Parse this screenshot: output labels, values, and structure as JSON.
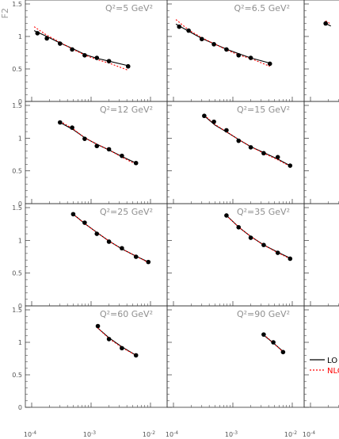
{
  "y_axis_label": "F2",
  "legend": [
    {
      "label": "LO",
      "color": "#000000",
      "dash": false
    },
    {
      "label": "NLO",
      "color": "#ff0000",
      "dash": true
    }
  ],
  "chart_data": {
    "type": "scatter",
    "xscale": "log",
    "xlim": [
      0.0001,
      0.01
    ],
    "ylim": [
      0,
      1.5
    ],
    "x_tick_labels": [
      "10^-4",
      "10^-3",
      "10^-2"
    ],
    "y_tick_labels": [
      "0",
      "0.5",
      "1",
      "1.5"
    ],
    "grid": false,
    "panels": [
      {
        "title": "Q2=5 GeV2",
        "title_text": "Q²=5 GeV²",
        "points": [
          [
            0.000125,
            1.05
          ],
          [
            0.00018,
            0.97
          ],
          [
            0.0003,
            0.89
          ],
          [
            0.00048,
            0.8
          ],
          [
            0.00078,
            0.71
          ],
          [
            0.00125,
            0.67
          ],
          [
            0.002,
            0.62
          ],
          [
            0.0042,
            0.54
          ]
        ],
        "lo": [
          [
            0.00011,
            1.09
          ],
          [
            0.00018,
            1.0
          ],
          [
            0.0003,
            0.9
          ],
          [
            0.0005,
            0.81
          ],
          [
            0.0008,
            0.72
          ],
          [
            0.0013,
            0.66
          ],
          [
            0.002,
            0.62
          ],
          [
            0.0042,
            0.55
          ]
        ],
        "nlo": [
          [
            0.00011,
            1.15
          ],
          [
            0.00018,
            1.02
          ],
          [
            0.0003,
            0.91
          ],
          [
            0.0005,
            0.8
          ],
          [
            0.0008,
            0.71
          ],
          [
            0.0013,
            0.64
          ],
          [
            0.002,
            0.59
          ],
          [
            0.0042,
            0.48
          ]
        ]
      },
      {
        "title": "Q2=6.5 GeV2",
        "title_text": "Q²=6.5 GeV²",
        "points": [
          [
            0.000125,
            1.15
          ],
          [
            0.00018,
            1.09
          ],
          [
            0.0003,
            0.96
          ],
          [
            0.00048,
            0.88
          ],
          [
            0.00078,
            0.8
          ],
          [
            0.00125,
            0.71
          ],
          [
            0.002,
            0.67
          ],
          [
            0.0042,
            0.58
          ]
        ],
        "lo": [
          [
            0.00011,
            1.19
          ],
          [
            0.00018,
            1.08
          ],
          [
            0.0003,
            0.97
          ],
          [
            0.0005,
            0.88
          ],
          [
            0.0008,
            0.8
          ],
          [
            0.0013,
            0.73
          ],
          [
            0.002,
            0.67
          ],
          [
            0.0042,
            0.59
          ]
        ],
        "nlo": [
          [
            0.00011,
            1.26
          ],
          [
            0.00018,
            1.1
          ],
          [
            0.0003,
            0.98
          ],
          [
            0.0005,
            0.88
          ],
          [
            0.0008,
            0.79
          ],
          [
            0.0013,
            0.71
          ],
          [
            0.002,
            0.66
          ],
          [
            0.0042,
            0.54
          ]
        ]
      },
      {
        "title": "",
        "title_text": "",
        "points": [
          [
            0.00018,
            1.2
          ]
        ],
        "lo": [
          [
            0.00018,
            1.2
          ],
          [
            0.00022,
            1.16
          ]
        ],
        "nlo": [
          [
            0.00018,
            1.24
          ],
          [
            0.00022,
            1.19
          ]
        ]
      },
      {
        "title": "Q2=12 GeV2",
        "title_text": "Q²=12 GeV²",
        "points": [
          [
            0.0003,
            1.24
          ],
          [
            0.00048,
            1.16
          ],
          [
            0.00078,
            0.99
          ],
          [
            0.00125,
            0.88
          ],
          [
            0.002,
            0.83
          ],
          [
            0.0033,
            0.73
          ],
          [
            0.0057,
            0.62
          ]
        ],
        "lo": [
          [
            0.0003,
            1.24
          ],
          [
            0.0005,
            1.13
          ],
          [
            0.0008,
            1.0
          ],
          [
            0.0013,
            0.9
          ],
          [
            0.002,
            0.82
          ],
          [
            0.0033,
            0.72
          ],
          [
            0.0057,
            0.62
          ]
        ],
        "nlo": [
          [
            0.0003,
            1.26
          ],
          [
            0.0005,
            1.14
          ],
          [
            0.0008,
            1.0
          ],
          [
            0.0013,
            0.9
          ],
          [
            0.002,
            0.82
          ],
          [
            0.0033,
            0.71
          ],
          [
            0.0057,
            0.6
          ]
        ]
      },
      {
        "title": "Q2=15 GeV2",
        "title_text": "Q²=15 GeV²",
        "points": [
          [
            0.00033,
            1.34
          ],
          [
            0.00048,
            1.25
          ],
          [
            0.00078,
            1.12
          ],
          [
            0.00125,
            0.96
          ],
          [
            0.002,
            0.86
          ],
          [
            0.0033,
            0.77
          ],
          [
            0.0057,
            0.71
          ],
          [
            0.0092,
            0.58
          ]
        ],
        "lo": [
          [
            0.00033,
            1.34
          ],
          [
            0.0005,
            1.2
          ],
          [
            0.0008,
            1.09
          ],
          [
            0.0013,
            0.97
          ],
          [
            0.002,
            0.87
          ],
          [
            0.0033,
            0.78
          ],
          [
            0.0057,
            0.68
          ],
          [
            0.0092,
            0.58
          ]
        ],
        "nlo": [
          [
            0.00033,
            1.35
          ],
          [
            0.0005,
            1.21
          ],
          [
            0.0008,
            1.09
          ],
          [
            0.0013,
            0.97
          ],
          [
            0.002,
            0.87
          ],
          [
            0.0033,
            0.77
          ],
          [
            0.0057,
            0.67
          ],
          [
            0.0092,
            0.57
          ]
        ]
      },
      {
        "title": "",
        "title_text": "",
        "points": [],
        "lo": [],
        "nlo": []
      },
      {
        "title": "Q2=25 GeV2",
        "title_text": "Q²=25 GeV²",
        "points": [
          [
            0.0005,
            1.4
          ],
          [
            0.00078,
            1.27
          ],
          [
            0.00125,
            1.1
          ],
          [
            0.002,
            0.98
          ],
          [
            0.0033,
            0.88
          ],
          [
            0.0057,
            0.75
          ],
          [
            0.0092,
            0.67
          ]
        ],
        "lo": [
          [
            0.0005,
            1.4
          ],
          [
            0.0008,
            1.25
          ],
          [
            0.0013,
            1.11
          ],
          [
            0.002,
            0.99
          ],
          [
            0.0033,
            0.87
          ],
          [
            0.0057,
            0.76
          ],
          [
            0.0092,
            0.67
          ]
        ],
        "nlo": [
          [
            0.0005,
            1.4
          ],
          [
            0.0008,
            1.25
          ],
          [
            0.0013,
            1.11
          ],
          [
            0.002,
            0.99
          ],
          [
            0.0033,
            0.87
          ],
          [
            0.0057,
            0.76
          ],
          [
            0.0092,
            0.66
          ]
        ]
      },
      {
        "title": "Q2=35 GeV2",
        "title_text": "Q²=35 GeV²",
        "points": [
          [
            0.00078,
            1.38
          ],
          [
            0.00125,
            1.2
          ],
          [
            0.002,
            1.04
          ],
          [
            0.0033,
            0.93
          ],
          [
            0.0057,
            0.81
          ],
          [
            0.0092,
            0.72
          ]
        ],
        "lo": [
          [
            0.00078,
            1.38
          ],
          [
            0.0013,
            1.19
          ],
          [
            0.002,
            1.06
          ],
          [
            0.0033,
            0.93
          ],
          [
            0.0057,
            0.82
          ],
          [
            0.0092,
            0.73
          ]
        ],
        "nlo": [
          [
            0.00078,
            1.38
          ],
          [
            0.0013,
            1.19
          ],
          [
            0.002,
            1.06
          ],
          [
            0.0033,
            0.93
          ],
          [
            0.0057,
            0.81
          ],
          [
            0.0092,
            0.72
          ]
        ]
      },
      {
        "title": "",
        "title_text": "",
        "points": [],
        "lo": [],
        "nlo": []
      },
      {
        "title": "Q2=60 GeV2",
        "title_text": "Q²=60 GeV²",
        "points": [
          [
            0.0013,
            1.25
          ],
          [
            0.002,
            1.05
          ],
          [
            0.0033,
            0.91
          ],
          [
            0.0057,
            0.8
          ]
        ],
        "lo": [
          [
            0.0013,
            1.22
          ],
          [
            0.002,
            1.07
          ],
          [
            0.0033,
            0.93
          ],
          [
            0.0057,
            0.8
          ]
        ],
        "nlo": [
          [
            0.0013,
            1.22
          ],
          [
            0.002,
            1.06
          ],
          [
            0.0033,
            0.92
          ],
          [
            0.0057,
            0.8
          ]
        ]
      },
      {
        "title": "Q2=90 GeV2",
        "title_text": "Q²=90 GeV²",
        "points": [
          [
            0.0033,
            1.12
          ],
          [
            0.0048,
            1.0
          ],
          [
            0.007,
            0.85
          ]
        ],
        "lo": [
          [
            0.0033,
            1.11
          ],
          [
            0.0048,
            0.99
          ],
          [
            0.007,
            0.86
          ]
        ],
        "nlo": [
          [
            0.0033,
            1.12
          ],
          [
            0.0048,
            0.99
          ],
          [
            0.007,
            0.85
          ]
        ]
      },
      {
        "title": "",
        "title_text": "",
        "points": [],
        "lo": [],
        "nlo": []
      }
    ]
  }
}
